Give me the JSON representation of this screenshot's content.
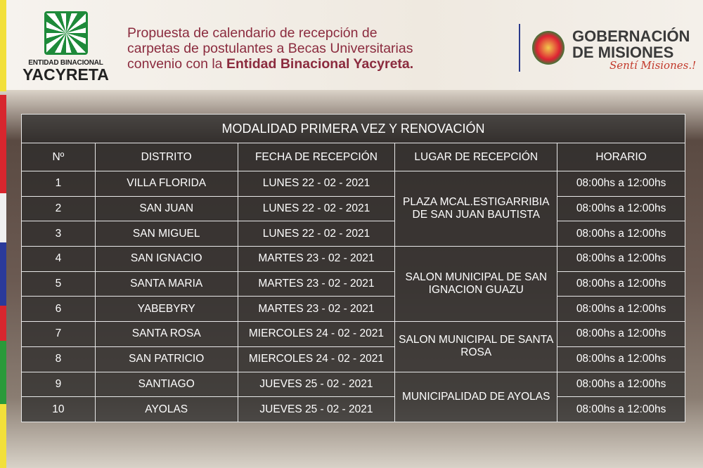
{
  "header": {
    "left_logo": {
      "small": "ENTIDAD BINACIONAL",
      "big": "YACYRETA"
    },
    "title_lines": [
      "Propuesta de calendario de recepción de",
      "carpetas de postulantes a Becas Universitarias",
      "convenio con la "
    ],
    "title_bold": "Entidad Binacional Yacyreta.",
    "right_logo": {
      "line1": "GOBERNACIÓN",
      "line2": "DE MISIONES",
      "slogan": "Sentí Misiones.!"
    }
  },
  "colors": {
    "title": "#8b2b3e",
    "ybi_green": "#1e8a3a",
    "divider": "#2a3a8a"
  },
  "table": {
    "title": "MODALIDAD PRIMERA VEZ Y RENOVACIÓN",
    "columns": [
      "Nº",
      "DISTRITO",
      "FECHA DE RECEPCIÓN",
      "LUGAR DE RECEPCIÓN",
      "HORARIO"
    ],
    "rows": [
      {
        "n": "1",
        "distrito": "VILLA FLORIDA",
        "fecha": "LUNES 22 - 02 - 2021",
        "horario": "08:00hs a 12:00hs"
      },
      {
        "n": "2",
        "distrito": "SAN JUAN",
        "fecha": "LUNES 22 - 02 - 2021",
        "horario": "08:00hs a 12:00hs"
      },
      {
        "n": "3",
        "distrito": "SAN MIGUEL",
        "fecha": "LUNES 22 - 02 - 2021",
        "horario": "08:00hs a 12:00hs"
      },
      {
        "n": "4",
        "distrito": "SAN IGNACIO",
        "fecha": "MARTES 23 - 02 - 2021",
        "horario": "08:00hs a 12:00hs"
      },
      {
        "n": "5",
        "distrito": "SANTA MARIA",
        "fecha": "MARTES 23 - 02 - 2021",
        "horario": "08:00hs a 12:00hs"
      },
      {
        "n": "6",
        "distrito": "YABEBYRY",
        "fecha": "MARTES 23 - 02 - 2021",
        "horario": "08:00hs a 12:00hs"
      },
      {
        "n": "7",
        "distrito": "SANTA ROSA",
        "fecha": "MIERCOLES 24 - 02 - 2021",
        "horario": "08:00hs a 12:00hs"
      },
      {
        "n": "8",
        "distrito": "SAN PATRICIO",
        "fecha": "MIERCOLES 24 - 02 - 2021",
        "horario": "08:00hs a 12:00hs"
      },
      {
        "n": "9",
        "distrito": "SANTIAGO",
        "fecha": "JUEVES 25 - 02 - 2021",
        "horario": "08:00hs a 12:00hs"
      },
      {
        "n": "10",
        "distrito": "AYOLAS",
        "fecha": "JUEVES 25 - 02 - 2021",
        "horario": "08:00hs a 12:00hs"
      }
    ],
    "lugares": [
      {
        "label": "PLAZA MCAL.ESTIGARRIBIA DE SAN JUAN BAUTISTA",
        "rowspan": 3
      },
      {
        "label": "SALON MUNICIPAL DE SAN IGNACION GUAZU",
        "rowspan": 3
      },
      {
        "label": "SALON MUNICIPAL DE SANTA ROSA",
        "rowspan": 2
      },
      {
        "label": "MUNICIPALIDAD DE AYOLAS",
        "rowspan": 2
      }
    ]
  }
}
